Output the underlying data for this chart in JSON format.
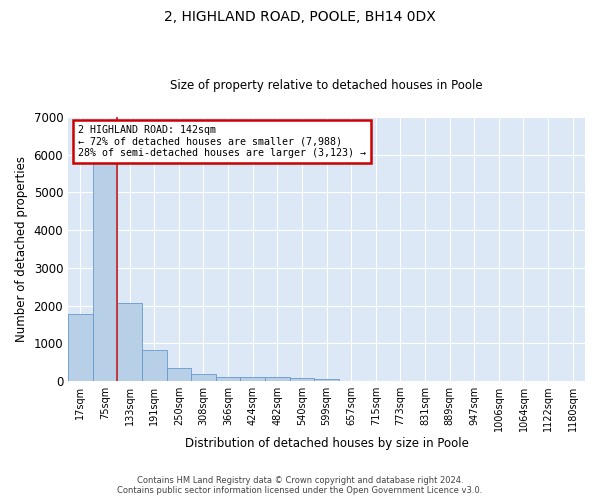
{
  "title": "2, HIGHLAND ROAD, POOLE, BH14 0DX",
  "subtitle": "Size of property relative to detached houses in Poole",
  "xlabel": "Distribution of detached houses by size in Poole",
  "ylabel": "Number of detached properties",
  "bar_labels": [
    "17sqm",
    "75sqm",
    "133sqm",
    "191sqm",
    "250sqm",
    "308sqm",
    "366sqm",
    "424sqm",
    "482sqm",
    "540sqm",
    "599sqm",
    "657sqm",
    "715sqm",
    "773sqm",
    "831sqm",
    "889sqm",
    "947sqm",
    "1006sqm",
    "1064sqm",
    "1122sqm",
    "1180sqm"
  ],
  "bar_values": [
    1780,
    5780,
    2060,
    820,
    340,
    185,
    115,
    100,
    95,
    75,
    65,
    0,
    0,
    0,
    0,
    0,
    0,
    0,
    0,
    0,
    0
  ],
  "bar_color": "#b8cfe8",
  "bar_edge_color": "#6699cc",
  "vline_x": 1.5,
  "vline_color": "#cc2222",
  "marker_label": "2 HIGHLAND ROAD: 142sqm",
  "pct_smaller": "72% of detached houses are smaller (7,988)",
  "pct_larger": "28% of semi-detached houses are larger (3,123)",
  "annotation_box_color": "#cc0000",
  "ylim": [
    0,
    7000
  ],
  "yticks": [
    0,
    1000,
    2000,
    3000,
    4000,
    5000,
    6000,
    7000
  ],
  "footer_line1": "Contains HM Land Registry data © Crown copyright and database right 2024.",
  "footer_line2": "Contains public sector information licensed under the Open Government Licence v3.0.",
  "fig_bg_color": "#ffffff",
  "axes_bg_color": "#dce8f5",
  "grid_color": "#ffffff"
}
